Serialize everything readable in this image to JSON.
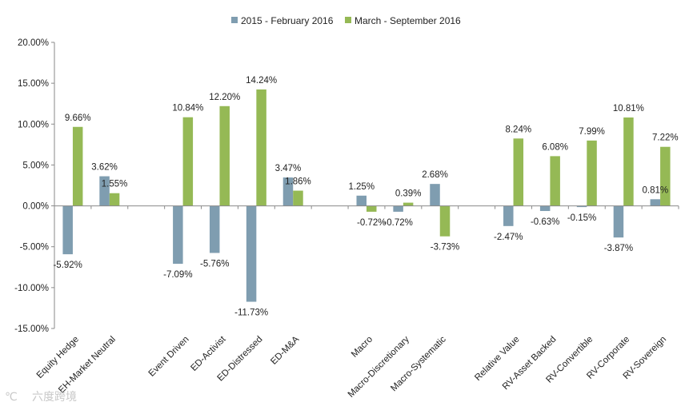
{
  "chart_data": {
    "type": "bar",
    "title": "",
    "xlabel": "",
    "ylabel": "",
    "ylim": [
      -0.15,
      0.2
    ],
    "yticks": [
      -0.15,
      -0.1,
      -0.05,
      0.0,
      0.05,
      0.1,
      0.15,
      0.2
    ],
    "ytick_labels": [
      "-15.00%",
      "-10.00%",
      "-5.00%",
      "0.00%",
      "5.00%",
      "10.00%",
      "15.00%",
      "20.00%"
    ],
    "grid": false,
    "legend_position": "top",
    "categories": [
      "Equity Hedge",
      "EH-Market Neutral",
      "",
      "Event Driven",
      "ED-Activist",
      "ED-Distressed",
      "ED-M&A",
      "",
      "Macro",
      "Macro-Discretionary",
      "Macro-Systematic",
      "",
      "Relative Value",
      "RV-Asset Backed",
      "RV-Convertible",
      "RV-Corporate",
      "RV-Sovereign"
    ],
    "series": [
      {
        "name": "2015 - February 2016",
        "color": "#7f9db0",
        "values": [
          -0.0592,
          0.0362,
          null,
          -0.0709,
          -0.0576,
          -0.1173,
          0.0347,
          null,
          0.0125,
          -0.0072,
          0.0268,
          null,
          -0.0247,
          -0.0063,
          -0.0015,
          -0.0387,
          0.0081
        ],
        "labels": [
          "-5.92%",
          "3.62%",
          "",
          "-7.09%",
          "-5.76%",
          "-11.73%",
          "3.47%",
          "",
          "1.25%",
          "-0.72%",
          "2.68%",
          "",
          "-2.47%",
          "-0.63%",
          "-0.15%",
          "-3.87%",
          "0.81%"
        ]
      },
      {
        "name": "March - September 2016",
        "color": "#95b955",
        "values": [
          0.0966,
          0.0155,
          null,
          0.1084,
          0.122,
          0.1424,
          0.0186,
          null,
          -0.0072,
          0.0039,
          -0.0373,
          null,
          0.0824,
          0.0608,
          0.0799,
          0.1081,
          0.0722
        ],
        "labels": [
          "9.66%",
          "1.55%",
          "",
          "10.84%",
          "12.20%",
          "14.24%",
          "1.86%",
          "",
          "-0.72%",
          "0.39%",
          "-3.73%",
          "",
          "8.24%",
          "6.08%",
          "7.99%",
          "10.81%",
          "7.22%"
        ]
      }
    ]
  },
  "watermark": {
    "logo_text": "℃",
    "text": "六度跨境"
  }
}
